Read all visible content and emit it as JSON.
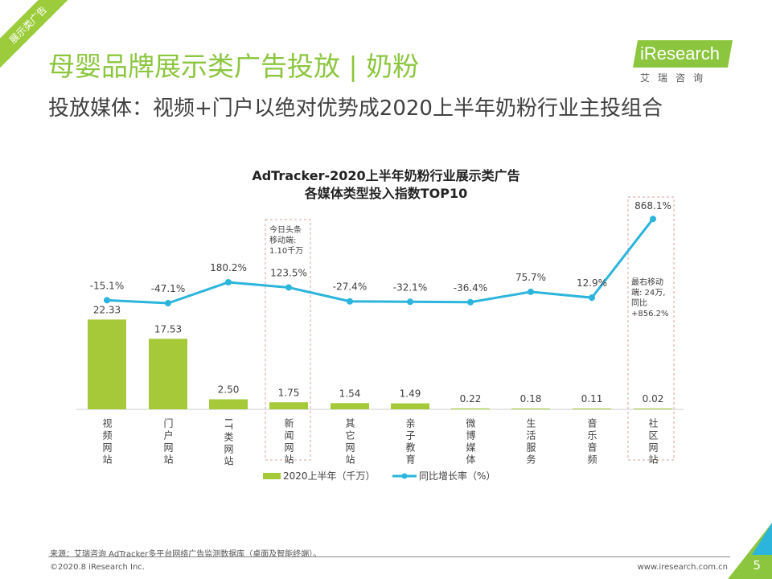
{
  "header": {
    "corner_tag": "展示类广告",
    "title": "母婴品牌展示类广告投放 | 奶粉",
    "subtitle": "投放媒体：视频+门户以绝对优势成2020上半年奶粉行业主投组合"
  },
  "logo": {
    "text": "iResearch",
    "cn": "艾瑞咨询"
  },
  "chart_data": {
    "type": "bar+line",
    "title": "AdTracker-2020上半年奶粉行业展示类广告",
    "subtitle": "各媒体类型投入指数TOP10",
    "categories": [
      "视频网站",
      "门户网站",
      "IT类网站",
      "新闻网站",
      "其它网站",
      "亲子教育",
      "微博媒体",
      "生活服务",
      "音乐音频",
      "社区网站"
    ],
    "series": [
      {
        "name": "2020上半年（千万）",
        "type": "bar",
        "color": "#a6c93a",
        "values": [
          22.33,
          17.53,
          2.5,
          1.75,
          1.54,
          1.49,
          0.22,
          0.18,
          0.11,
          0.02
        ],
        "labels": [
          "22.33",
          "17.53",
          "2.50",
          "1.75",
          "1.54",
          "1.49",
          "0.22",
          "0.18",
          "0.11",
          "0.02"
        ]
      },
      {
        "name": "同比增长率（%）",
        "type": "line",
        "color": "#2bb5dc",
        "values": [
          -15.1,
          -47.1,
          180.2,
          123.5,
          -27.4,
          -32.1,
          -36.4,
          75.7,
          12.9,
          868.1
        ],
        "labels": [
          "-15.1%",
          "-47.1%",
          "180.2%",
          "123.5%",
          "-27.4%",
          "-32.1%",
          "-36.4%",
          "75.7%",
          "12.9%",
          "868.1%"
        ]
      }
    ],
    "annotations": [
      {
        "category": "新闻网站",
        "text": [
          "今日头条",
          "移动端:",
          "1.10千万"
        ]
      },
      {
        "category": "社区网站",
        "text": [
          "最右移动",
          "端: 24万,",
          "同比",
          "+856.2%"
        ]
      }
    ],
    "legend": "bottom"
  },
  "footer": {
    "source": "来源：艾瑞咨询 AdTracker多平台网络广告监测数据库（桌面及智能终端）。",
    "copyright": "©2020.8 iResearch Inc.",
    "url": "www.iresearch.com.cn",
    "page": "5"
  }
}
